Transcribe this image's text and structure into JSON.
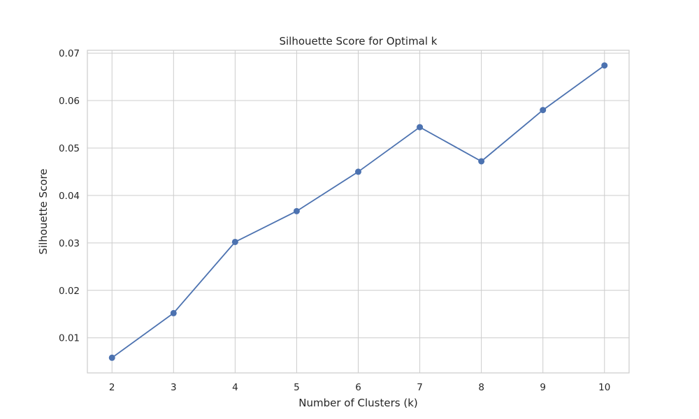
{
  "chart_data": {
    "type": "line",
    "title": "Silhouette Score for Optimal k",
    "xlabel": "Number of Clusters (k)",
    "ylabel": "Silhouette Score",
    "x": [
      2,
      3,
      4,
      5,
      6,
      7,
      8,
      9,
      10
    ],
    "series": [
      {
        "values": [
          0.0058,
          0.0152,
          0.0302,
          0.0367,
          0.045,
          0.0544,
          0.0472,
          0.058,
          0.0674
        ]
      }
    ],
    "xticks": [
      "2",
      "3",
      "4",
      "5",
      "6",
      "7",
      "8",
      "9",
      "10"
    ],
    "yticks": [
      "0.01",
      "0.02",
      "0.03",
      "0.04",
      "0.05",
      "0.06",
      "0.07"
    ],
    "xlim": [
      1.6,
      10.4
    ],
    "ylim": [
      0.0026,
      0.0706
    ],
    "grid": true,
    "color": "#4c72b0",
    "marker": "circle"
  }
}
